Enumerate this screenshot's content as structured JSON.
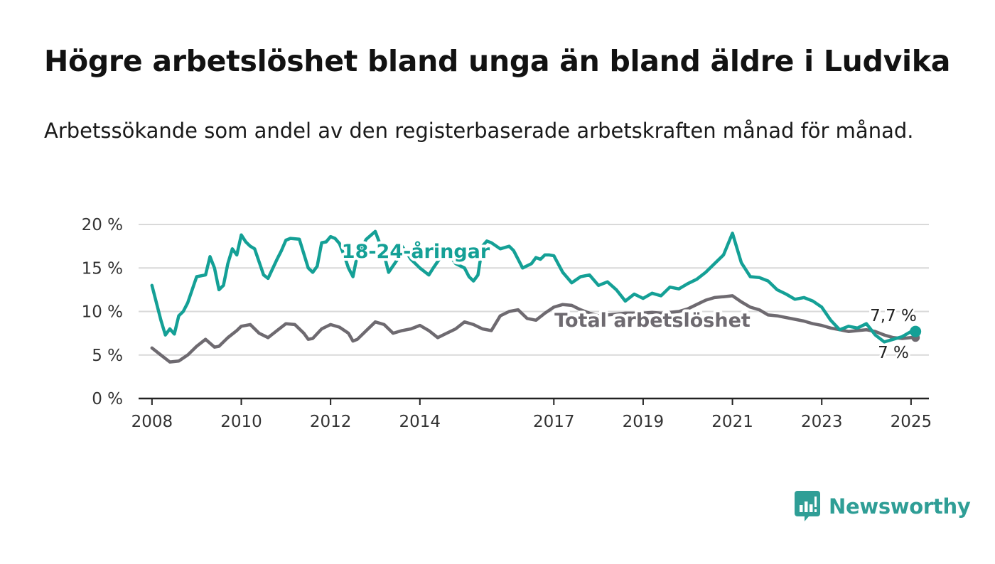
{
  "header": {
    "title": "Högre arbetslöshet bland unga än bland äldre i Ludvika",
    "subtitle": "Arbetssökande som andel av den registerbaserade arbetskraften månad för månad."
  },
  "colors": {
    "youth": "#14a096",
    "total": "#6e6a70",
    "grid": "#d9d9d9",
    "axis": "#222222"
  },
  "brand": {
    "name": "Newsworthy",
    "icon": "bar-chart-speech-bubble-icon"
  },
  "chart_data": {
    "type": "line",
    "title": "",
    "xlabel": "",
    "ylabel": "",
    "ylim": [
      0,
      20
    ],
    "xlim": [
      2007.7,
      2025.4
    ],
    "grid": true,
    "y_ticks": [
      0,
      5,
      10,
      15,
      20
    ],
    "y_tick_labels": [
      "0 %",
      "5 %",
      "10 %",
      "15 %",
      "20 %"
    ],
    "x_ticks": [
      2008,
      2010,
      2012,
      2014,
      2017,
      2019,
      2021,
      2023,
      2025
    ],
    "x_tick_labels": [
      "2008",
      "2010",
      "2012",
      "2014",
      "2017",
      "2019",
      "2021",
      "2023",
      "2025"
    ],
    "series": [
      {
        "name": "18-24-åringar",
        "color": "#14a096",
        "end_label": "7,7 %",
        "x": [
          2008.0,
          2008.2,
          2008.3,
          2008.4,
          2008.5,
          2008.6,
          2008.7,
          2008.8,
          2009.0,
          2009.2,
          2009.3,
          2009.4,
          2009.5,
          2009.6,
          2009.7,
          2009.8,
          2009.9,
          2010.0,
          2010.1,
          2010.2,
          2010.3,
          2010.5,
          2010.6,
          2010.8,
          2010.9,
          2011.0,
          2011.1,
          2011.3,
          2011.5,
          2011.6,
          2011.7,
          2011.8,
          2011.9,
          2012.0,
          2012.1,
          2012.2,
          2012.3,
          2012.4,
          2012.5,
          2012.6,
          2012.8,
          2013.0,
          2013.2,
          2013.3,
          2013.5,
          2013.6,
          2013.8,
          2014.0,
          2014.2,
          2014.3,
          2014.5,
          2014.6,
          2014.8,
          2015.0,
          2015.1,
          2015.2,
          2015.3,
          2015.4,
          2015.5,
          2015.6,
          2015.8,
          2016.0,
          2016.1,
          2016.2,
          2016.3,
          2016.5,
          2016.6,
          2016.7,
          2016.8,
          2016.9,
          2017.0,
          2017.2,
          2017.4,
          2017.6,
          2017.8,
          2018.0,
          2018.2,
          2018.4,
          2018.6,
          2018.8,
          2019.0,
          2019.2,
          2019.4,
          2019.6,
          2019.8,
          2020.0,
          2020.2,
          2020.4,
          2020.6,
          2020.8,
          2021.0,
          2021.2,
          2021.4,
          2021.6,
          2021.8,
          2022.0,
          2022.2,
          2022.4,
          2022.6,
          2022.8,
          2023.0,
          2023.2,
          2023.4,
          2023.6,
          2023.8,
          2024.0,
          2024.2,
          2024.4,
          2024.6,
          2024.8,
          2025.0,
          2025.1
        ],
        "y": [
          13.0,
          9.0,
          7.3,
          8.0,
          7.4,
          9.5,
          10.0,
          11.0,
          14.0,
          14.2,
          16.3,
          15.0,
          12.5,
          13.0,
          15.5,
          17.2,
          16.5,
          18.8,
          18.0,
          17.5,
          17.2,
          14.2,
          13.8,
          16.0,
          17.0,
          18.2,
          18.4,
          18.3,
          15.0,
          14.5,
          15.2,
          17.9,
          18.0,
          18.6,
          18.4,
          17.8,
          16.5,
          15.0,
          14.0,
          16.5,
          18.3,
          19.2,
          16.5,
          14.5,
          16.0,
          17.5,
          16.0,
          15.0,
          14.2,
          15.0,
          16.5,
          17.0,
          15.5,
          15.0,
          14.0,
          13.5,
          14.2,
          17.5,
          18.1,
          17.9,
          17.2,
          17.5,
          17.0,
          16.0,
          15.0,
          15.5,
          16.2,
          16.0,
          16.5,
          16.5,
          16.4,
          14.5,
          13.3,
          14.0,
          14.2,
          13.0,
          13.4,
          12.5,
          11.2,
          12.0,
          11.5,
          12.1,
          11.8,
          12.8,
          12.6,
          13.2,
          13.7,
          14.5,
          15.5,
          16.5,
          19.0,
          15.6,
          14.0,
          13.9,
          13.5,
          12.5,
          12.0,
          11.4,
          11.6,
          11.2,
          10.5,
          9.0,
          7.9,
          8.3,
          8.1,
          8.6,
          7.3,
          6.5,
          6.8,
          7.1,
          7.7,
          7.7
        ]
      },
      {
        "name": "Total arbetslöshet",
        "color": "#6e6a70",
        "end_label": "7 %",
        "x": [
          2008.0,
          2008.2,
          2008.4,
          2008.6,
          2008.8,
          2009.0,
          2009.2,
          2009.4,
          2009.5,
          2009.7,
          2009.9,
          2010.0,
          2010.2,
          2010.4,
          2010.6,
          2010.8,
          2011.0,
          2011.2,
          2011.4,
          2011.5,
          2011.6,
          2011.8,
          2012.0,
          2012.2,
          2012.4,
          2012.5,
          2012.6,
          2012.8,
          2013.0,
          2013.2,
          2013.4,
          2013.6,
          2013.8,
          2014.0,
          2014.2,
          2014.4,
          2014.6,
          2014.8,
          2015.0,
          2015.2,
          2015.4,
          2015.6,
          2015.8,
          2016.0,
          2016.2,
          2016.4,
          2016.6,
          2016.8,
          2017.0,
          2017.2,
          2017.4,
          2017.6,
          2017.8,
          2018.0,
          2018.2,
          2018.4,
          2018.6,
          2018.8,
          2019.0,
          2019.2,
          2019.4,
          2019.6,
          2019.8,
          2020.0,
          2020.2,
          2020.4,
          2020.6,
          2020.8,
          2021.0,
          2021.2,
          2021.4,
          2021.6,
          2021.8,
          2022.0,
          2022.2,
          2022.4,
          2022.6,
          2022.8,
          2023.0,
          2023.2,
          2023.4,
          2023.6,
          2023.8,
          2024.0,
          2024.2,
          2024.4,
          2024.6,
          2024.8,
          2025.0,
          2025.1
        ],
        "y": [
          5.8,
          5.0,
          4.2,
          4.3,
          5.0,
          6.0,
          6.8,
          5.9,
          6.0,
          7.0,
          7.8,
          8.3,
          8.5,
          7.5,
          7.0,
          7.8,
          8.6,
          8.5,
          7.5,
          6.8,
          6.9,
          8.0,
          8.5,
          8.2,
          7.5,
          6.6,
          6.8,
          7.8,
          8.8,
          8.5,
          7.5,
          7.8,
          8.0,
          8.4,
          7.8,
          7.0,
          7.5,
          8.0,
          8.8,
          8.5,
          8.0,
          7.8,
          9.5,
          10.0,
          10.2,
          9.2,
          9.0,
          9.8,
          10.5,
          10.8,
          10.7,
          10.2,
          9.8,
          9.5,
          9.6,
          9.7,
          9.8,
          9.8,
          9.8,
          9.9,
          9.8,
          9.9,
          10.0,
          10.3,
          10.8,
          11.3,
          11.6,
          11.7,
          11.8,
          11.1,
          10.5,
          10.2,
          9.6,
          9.5,
          9.3,
          9.1,
          8.9,
          8.6,
          8.4,
          8.1,
          7.9,
          7.7,
          7.8,
          7.9,
          7.7,
          7.3,
          7.0,
          6.9,
          7.0,
          7.0
        ]
      }
    ]
  }
}
